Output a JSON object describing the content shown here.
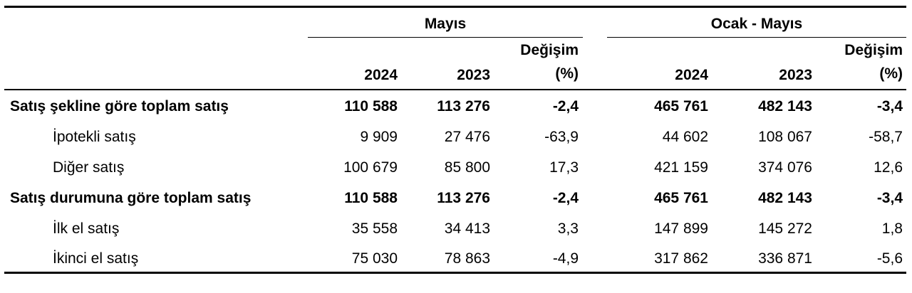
{
  "header": {
    "group1_label": "Mayıs",
    "group2_label": "Ocak - Mayıs",
    "change_label_line1": "Değişim",
    "change_label_line2": "(%)",
    "year_current": "2024",
    "year_previous": "2023"
  },
  "rows": [
    {
      "label": "Satış şekline göre toplam satış",
      "may_2024": "110 588",
      "may_2023": "113 276",
      "may_change": "-2,4",
      "ytd_2024": "465 761",
      "ytd_2023": "482 143",
      "ytd_change": "-3,4"
    },
    {
      "label": "İpotekli satış",
      "may_2024": "9 909",
      "may_2023": "27 476",
      "may_change": "-63,9",
      "ytd_2024": "44 602",
      "ytd_2023": "108 067",
      "ytd_change": "-58,7"
    },
    {
      "label": "Diğer satış",
      "may_2024": "100 679",
      "may_2023": "85 800",
      "may_change": "17,3",
      "ytd_2024": "421 159",
      "ytd_2023": "374 076",
      "ytd_change": "12,6"
    },
    {
      "label": "Satış durumuna göre toplam satış",
      "may_2024": "110 588",
      "may_2023": "113 276",
      "may_change": "-2,4",
      "ytd_2024": "465 761",
      "ytd_2023": "482 143",
      "ytd_change": "-3,4"
    },
    {
      "label": "İlk el satış",
      "may_2024": "35 558",
      "may_2023": "34 413",
      "may_change": "3,3",
      "ytd_2024": "147 899",
      "ytd_2023": "145 272",
      "ytd_change": "1,8"
    },
    {
      "label": "İkinci el satış",
      "may_2024": "75 030",
      "may_2023": "78 863",
      "may_change": "-4,9",
      "ytd_2024": "317 862",
      "ytd_2023": "336 871",
      "ytd_change": "-5,6"
    }
  ]
}
